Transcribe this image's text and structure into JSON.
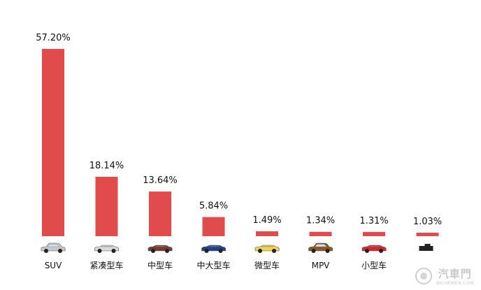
{
  "chart_data": {
    "type": "bar",
    "categories": [
      "SUV",
      "紧凑型车",
      "中型车",
      "中大型车",
      "微型车",
      "MPV",
      "小型车",
      ""
    ],
    "values": [
      57.2,
      18.14,
      13.64,
      5.84,
      1.49,
      1.34,
      1.31,
      1.03
    ],
    "value_labels": [
      "57.20%",
      "18.14%",
      "13.64%",
      "5.84%",
      "1.49%",
      "1.34%",
      "1.31%",
      "1.03%"
    ],
    "icons": [
      "suv-icon",
      "compact-car-icon",
      "midsize-car-icon",
      "large-sedan-icon",
      "mini-car-icon",
      "mpv-icon",
      "small-car-icon",
      "other-vehicle-icon"
    ],
    "icon_colors": [
      "#c8c8c8",
      "#d8d8d8",
      "#7a3b2e",
      "#1f3f8f",
      "#f2d34a",
      "#8b5a1e",
      "#d8262e",
      "#222222"
    ],
    "bar_color": "#e14b4b",
    "ylim": [
      0,
      60
    ],
    "grid": false,
    "legend": "none"
  },
  "watermark": {
    "text": "汽車門",
    "subtext": "QICHEMEN.COM"
  }
}
